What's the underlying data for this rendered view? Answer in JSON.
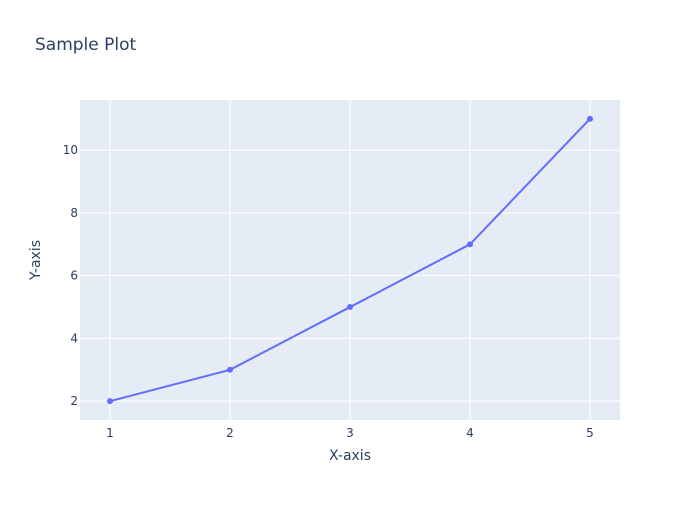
{
  "chart_data": {
    "type": "line",
    "title": "Sample Plot",
    "xlabel": "X-axis",
    "ylabel": "Y-axis",
    "x": [
      1,
      2,
      3,
      4,
      5
    ],
    "series": [
      {
        "values": [
          2,
          3,
          5,
          7,
          11
        ],
        "color": "#636efa"
      }
    ],
    "xlim": [
      0.75,
      5.25
    ],
    "ylim": [
      1.4,
      11.6
    ],
    "x_ticks": [
      "1",
      "2",
      "3",
      "4",
      "5"
    ],
    "y_ticks": [
      "2",
      "4",
      "6",
      "8",
      "10"
    ],
    "grid": true,
    "plot_bgcolor": "#e5ecf6",
    "markers": true
  }
}
